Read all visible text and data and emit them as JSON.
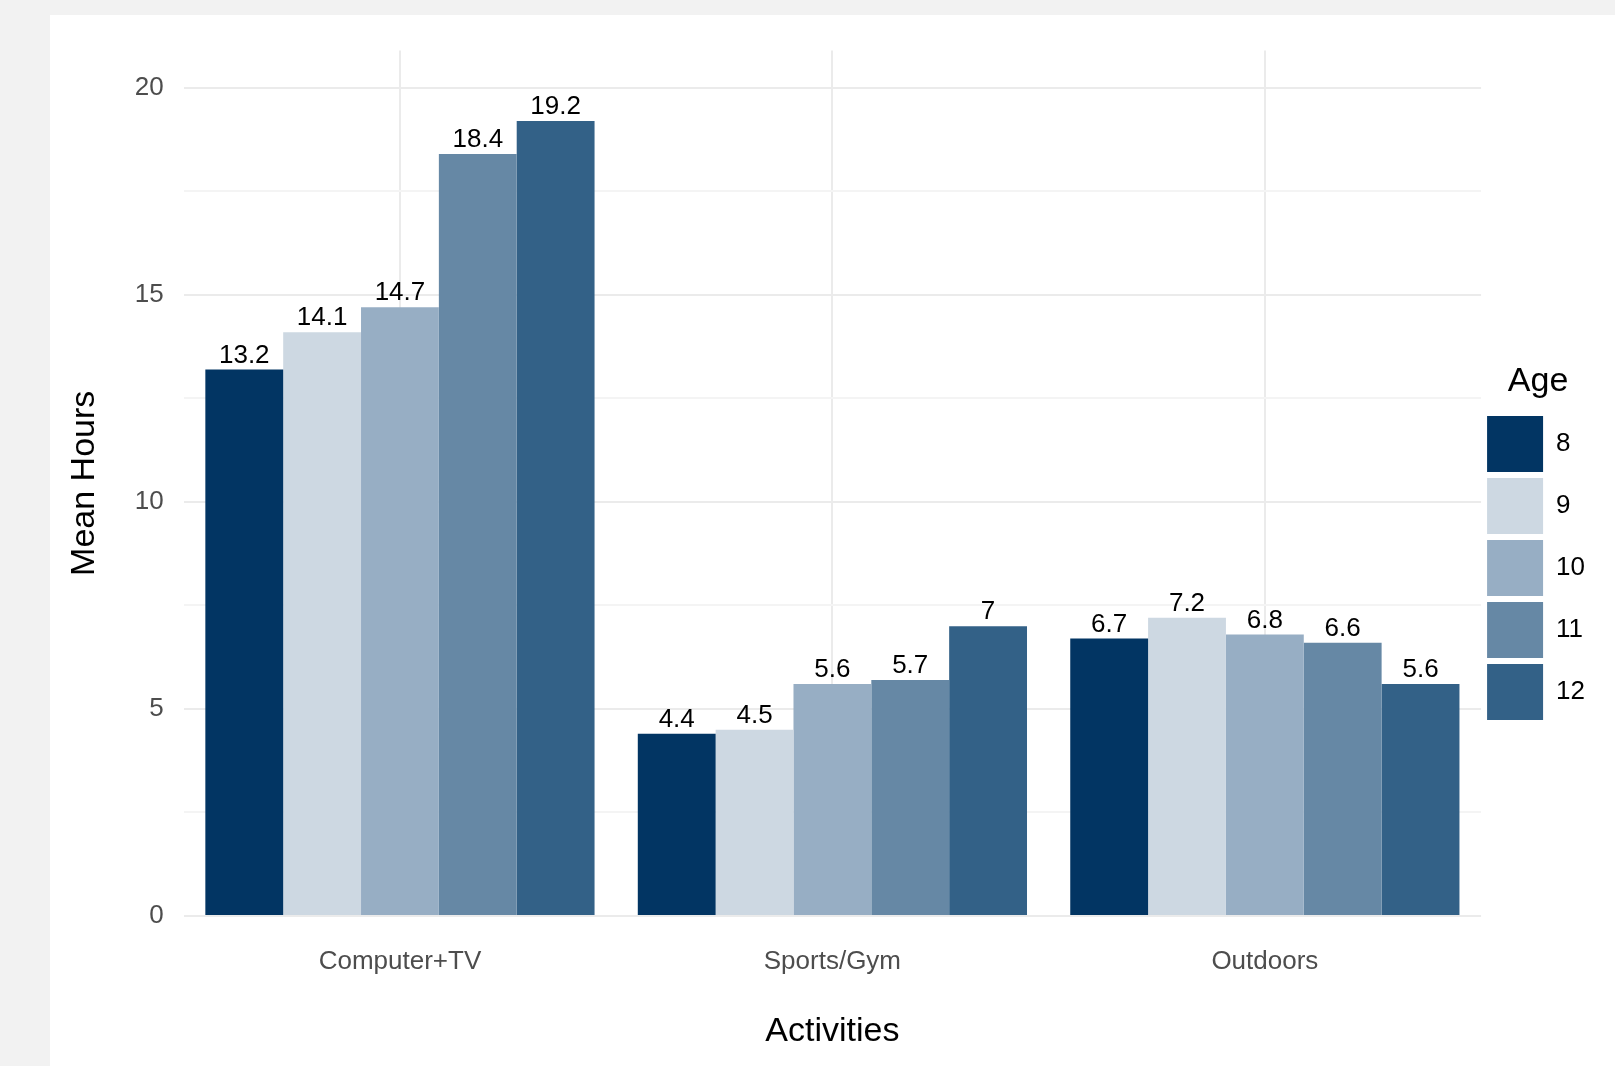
{
  "chart_data": {
    "type": "bar",
    "xlabel": "Activities",
    "ylabel": "Mean Hours",
    "legend_title": "Age",
    "categories": [
      "Computer+TV",
      "Sports/Gym",
      "Outdoors"
    ],
    "series": [
      {
        "name": "8",
        "color": "#023563",
        "values": [
          13.2,
          4.4,
          6.7
        ]
      },
      {
        "name": "9",
        "color": "#cdd8e2",
        "values": [
          14.1,
          4.5,
          7.2
        ]
      },
      {
        "name": "10",
        "color": "#97aec4",
        "values": [
          14.7,
          5.6,
          6.8
        ]
      },
      {
        "name": "11",
        "color": "#6688a5",
        "values": [
          18.4,
          5.7,
          6.6
        ]
      },
      {
        "name": "12",
        "color": "#336187",
        "values": [
          19.2,
          7,
          5.6
        ]
      }
    ],
    "ylim": [
      0,
      20.9
    ],
    "yticks": [
      0,
      {
        "value": 2.5,
        "label": null
      },
      5,
      {
        "value": 7.5,
        "label": null
      },
      10,
      {
        "value": 12.5,
        "label": null
      },
      15,
      {
        "value": 17.5,
        "label": null
      },
      20
    ],
    "grid": true,
    "legend": "right",
    "data_labels": true
  }
}
